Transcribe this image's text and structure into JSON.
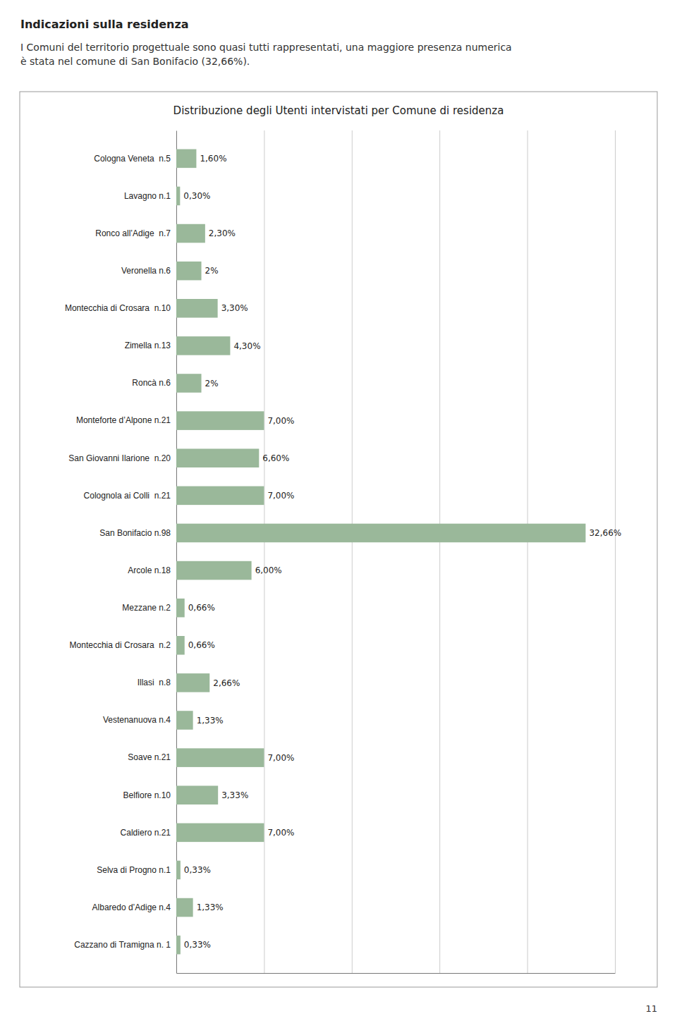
{
  "chart_data": {
    "type": "bar",
    "orientation": "horizontal",
    "title": "Distribuzione degli Utenti intervistati per Comune di residenza",
    "subtitle": "Indicazioni sulla residenza",
    "annotations": [
      "I Comuni del territorio progettuale sono quasi tutti rappresentati, una maggiore presenza numerica\nè stata nel comune di San Bonifacio (32,66%).",
      "11"
    ],
    "categories": [
      "Cologna Veneta  n.5",
      "Lavagno n.1",
      "Ronco all’Adige  n.7",
      "Veronella n.6",
      "Montecchia di Crosara  n.10",
      "Zimella n.13",
      "Roncà n.6",
      "Monteforte d’Alpone n.21",
      "San Giovanni Ilarione  n.20",
      "Colognola ai Colli  n.21",
      "San Bonifacio n.98",
      "Arcole n.18",
      "Mezzane n.2",
      "Montecchia di Crosara  n.2",
      "Illasi  n.8",
      "Vestenanuova n.4",
      "Soave n.21",
      "Belfiore n.10",
      "Caldiero n.21",
      "Selva di Progno n.1",
      "Albaredo d’Adige n.4",
      "Cazzano di Tramigna n. 1"
    ],
    "values": [
      1.6,
      0.3,
      2.3,
      2.0,
      3.3,
      4.3,
      2.0,
      7.0,
      6.6,
      7.0,
      32.66,
      6.0,
      0.66,
      0.66,
      2.66,
      1.33,
      7.0,
      3.33,
      7.0,
      0.33,
      1.33,
      0.33
    ],
    "value_labels": [
      "1,60%",
      "0,30%",
      "2,30%",
      "2%",
      "3,30%",
      "4,30%",
      "2%",
      "7,00%",
      "6,60%",
      "7,00%",
      "32,66%",
      "6,00%",
      "0,66%",
      "0,66%",
      "2,66%",
      "1,33%",
      "7,00%",
      "3,33%",
      "7,00%",
      "0,33%",
      "1,33%",
      "0,33%"
    ],
    "color": "#9ab89a",
    "xlim": [
      0,
      35
    ],
    "xticks": [
      7,
      14,
      21,
      28,
      35
    ],
    "grid": true,
    "tick_labels": "y",
    "data_labels": true
  }
}
